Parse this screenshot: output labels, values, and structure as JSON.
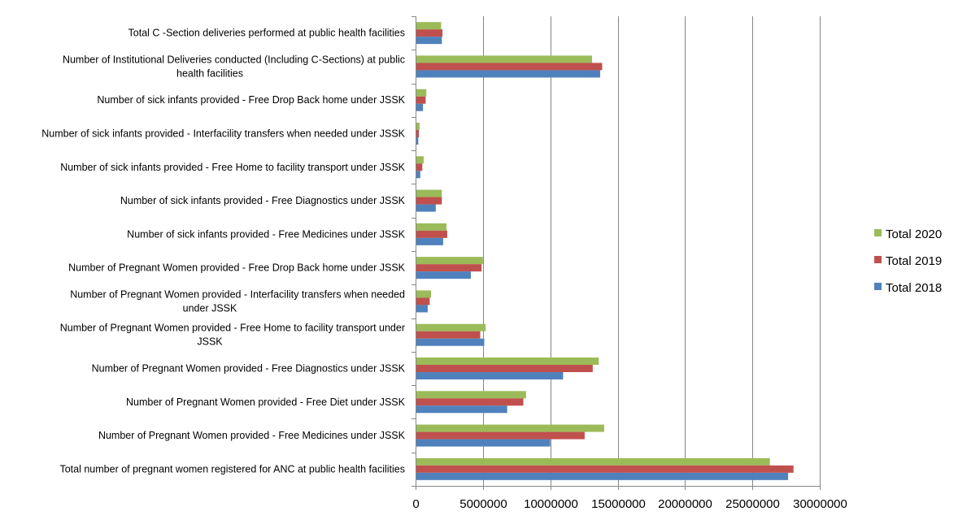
{
  "chart_data": {
    "type": "bar",
    "orientation": "horizontal",
    "categories": [
      [
        "Total C -Section deliveries performed  at public health facilities"
      ],
      [
        "Number of Institutional Deliveries conducted (Including C-Sections) at public",
        "health facilities"
      ],
      [
        "Number of sick infants provided - Free Drop Back home under JSSK"
      ],
      [
        "Number of sick infants provided - Interfacility transfers when needed under JSSK"
      ],
      [
        "Number of sick infants provided - Free Home to facility transport under JSSK"
      ],
      [
        "Number of sick infants provided - Free Diagnostics under JSSK"
      ],
      [
        "Number of sick infants provided - Free Medicines under JSSK"
      ],
      [
        "Number of Pregnant Women provided - Free Drop Back home under JSSK"
      ],
      [
        "Number of Pregnant Women provided - Interfacility transfers when needed",
        "under JSSK"
      ],
      [
        "Number of Pregnant Women provided - Free Home to facility transport under",
        "JSSK"
      ],
      [
        "Number of Pregnant Women provided - Free Diagnostics under JSSK"
      ],
      [
        "Number of Pregnant Women provided - Free Diet under JSSK"
      ],
      [
        "Number of Pregnant Women provided - Free Medicines under JSSK"
      ],
      [
        "Total number of pregnant women registered for ANC at public health facilities"
      ]
    ],
    "series": [
      {
        "name": "Total 2020",
        "color": "#9bbb59",
        "values": [
          1900000,
          13100000,
          800000,
          300000,
          600000,
          1950000,
          2300000,
          5000000,
          1150000,
          5200000,
          13600000,
          8200000,
          14000000,
          26300000
        ]
      },
      {
        "name": "Total 2019",
        "color": "#c0504d",
        "values": [
          2000000,
          13850000,
          750000,
          250000,
          500000,
          1950000,
          2350000,
          4900000,
          1050000,
          4800000,
          13150000,
          8000000,
          12550000,
          28050000
        ]
      },
      {
        "name": "Total 2018",
        "color": "#4f81bd",
        "values": [
          1950000,
          13700000,
          550000,
          200000,
          350000,
          1500000,
          2050000,
          4100000,
          900000,
          5100000,
          10950000,
          6800000,
          10000000,
          27650000
        ]
      }
    ],
    "xlim": [
      0,
      30000000
    ],
    "xticks": [
      "0",
      "5000000",
      "10000000",
      "15000000",
      "20000000",
      "25000000",
      "30000000"
    ],
    "xtick_values": [
      0,
      5000000,
      10000000,
      15000000,
      20000000,
      25000000,
      30000000
    ],
    "grid": "vertical",
    "legend": {
      "position": "right",
      "order": [
        "Total 2020",
        "Total 2019",
        "Total 2018"
      ]
    },
    "title": "",
    "xlabel": "",
    "ylabel": ""
  }
}
